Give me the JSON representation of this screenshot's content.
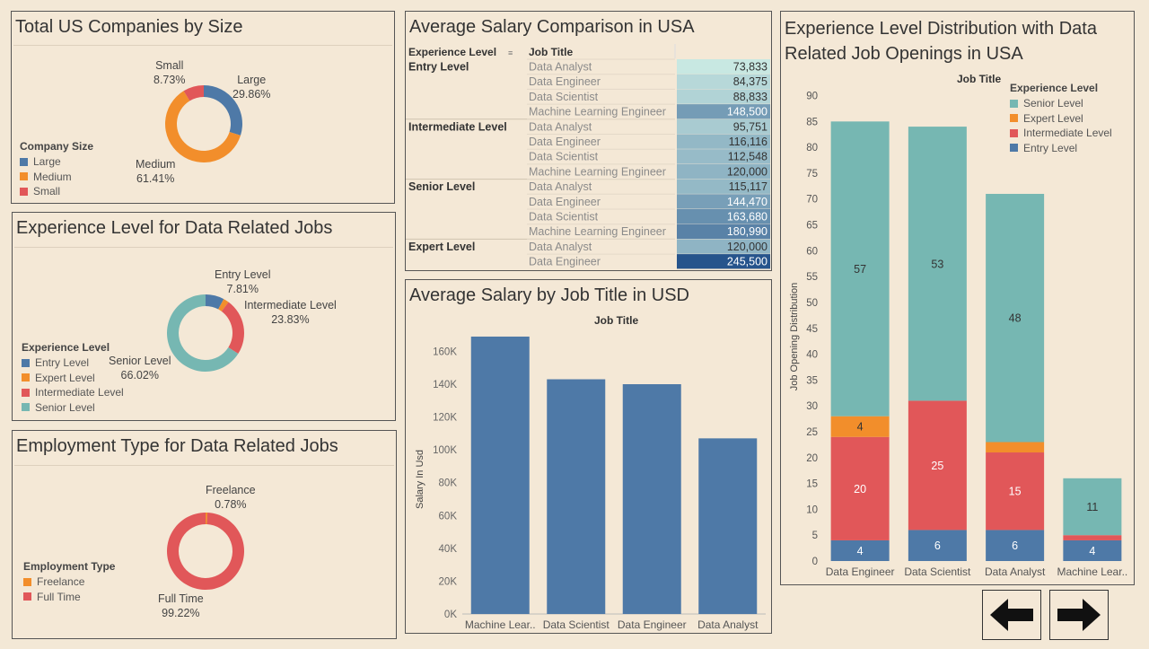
{
  "panels": {
    "company_size": {
      "title": "Total US Companies by Size",
      "legend_title": "Company Size",
      "legend": [
        {
          "label": "Large",
          "color": "#4e79a7"
        },
        {
          "label": "Medium",
          "color": "#f28e2b"
        },
        {
          "label": "Small",
          "color": "#e15759"
        }
      ],
      "slices": [
        {
          "name": "Large",
          "pct_label": "29.86%",
          "color": "#4e79a7"
        },
        {
          "name": "Medium",
          "pct_label": "61.41%",
          "color": "#f28e2b"
        },
        {
          "name": "Small",
          "pct_label": "8.73%",
          "color": "#e15759"
        }
      ]
    },
    "experience_level": {
      "title": "Experience Level for Data Related Jobs",
      "legend_title": "Experience Level",
      "legend": [
        {
          "label": "Entry Level",
          "color": "#4e79a7"
        },
        {
          "label": "Expert Level",
          "color": "#f28e2b"
        },
        {
          "label": "Intermediate Level",
          "color": "#e15759"
        },
        {
          "label": "Senior Level",
          "color": "#76b7b2"
        }
      ],
      "slices": [
        {
          "name": "Entry Level",
          "pct_label": "7.81%",
          "color": "#4e79a7"
        },
        {
          "name": "Expert Level",
          "pct_label": "",
          "color": "#f28e2b"
        },
        {
          "name": "Intermediate Level",
          "pct_label": "23.83%",
          "color": "#e15759"
        },
        {
          "name": "Senior Level",
          "pct_label": "66.02%",
          "color": "#76b7b2"
        }
      ]
    },
    "employment_type": {
      "title": "Employment Type for Data Related Jobs",
      "legend_title": "Employment Type",
      "legend": [
        {
          "label": "Freelance",
          "color": "#f28e2b"
        },
        {
          "label": "Full Time",
          "color": "#e15759"
        }
      ],
      "slices": [
        {
          "name": "Freelance",
          "pct_label": "0.78%",
          "color": "#f28e2b"
        },
        {
          "name": "Full Time",
          "pct_label": "99.22%",
          "color": "#e15759"
        }
      ]
    },
    "salary_table": {
      "title": "Average Salary Comparison in USA",
      "col1_header": "Experience Level",
      "col2_header": "Job Title",
      "groups": [
        {
          "level": "Entry Level",
          "rows": [
            {
              "job": "Data Analyst",
              "value": "73,833"
            },
            {
              "job": "Data Engineer",
              "value": "84,375"
            },
            {
              "job": "Data Scientist",
              "value": "88,833"
            },
            {
              "job": "Machine Learning Engineer",
              "value": "148,500"
            }
          ]
        },
        {
          "level": "Intermediate Level",
          "rows": [
            {
              "job": "Data Analyst",
              "value": "95,751"
            },
            {
              "job": "Data Engineer",
              "value": "116,116"
            },
            {
              "job": "Data Scientist",
              "value": "112,548"
            },
            {
              "job": "Machine Learning Engineer",
              "value": "120,000"
            }
          ]
        },
        {
          "level": "Senior Level",
          "rows": [
            {
              "job": "Data Analyst",
              "value": "115,117"
            },
            {
              "job": "Data Engineer",
              "value": "144,470"
            },
            {
              "job": "Data Scientist",
              "value": "163,680"
            },
            {
              "job": "Machine Learning Engineer",
              "value": "180,990"
            }
          ]
        },
        {
          "level": "Expert Level",
          "rows": [
            {
              "job": "Data Analyst",
              "value": "120,000"
            },
            {
              "job": "Data Engineer",
              "value": "245,500"
            }
          ]
        }
      ]
    },
    "salary_bar": {
      "title": "Average Salary by Job Title in USD",
      "header": "Job Title"
    },
    "stacked": {
      "title_line1": "Experience Level Distribution with Data",
      "title_line2": "Related Job Openings in USA",
      "header": "Job Title",
      "legend_title": "Experience Level",
      "legend": [
        {
          "label": "Senior Level",
          "color": "#76b7b2"
        },
        {
          "label": "Expert Level",
          "color": "#f28e2b"
        },
        {
          "label": "Intermediate Level",
          "color": "#e15759"
        },
        {
          "label": "Entry Level",
          "color": "#4e79a7"
        }
      ]
    }
  },
  "nav": {
    "back_icon": "arrow-left-icon",
    "forward_icon": "arrow-right-icon"
  },
  "chart_data": [
    {
      "type": "pie",
      "title": "Total US Companies by Size",
      "categories": [
        "Large",
        "Medium",
        "Small"
      ],
      "values": [
        29.86,
        61.41,
        8.73
      ]
    },
    {
      "type": "pie",
      "title": "Experience Level for Data Related Jobs",
      "categories": [
        "Entry Level",
        "Expert Level",
        "Intermediate Level",
        "Senior Level"
      ],
      "values": [
        7.81,
        2.34,
        23.83,
        66.02
      ]
    },
    {
      "type": "pie",
      "title": "Employment Type for Data Related Jobs",
      "categories": [
        "Freelance",
        "Full Time"
      ],
      "values": [
        0.78,
        99.22
      ]
    },
    {
      "type": "table",
      "title": "Average Salary Comparison in USA",
      "color_range": [
        73833,
        245500
      ]
    },
    {
      "type": "bar",
      "title": "Average Salary by Job Title in USD",
      "xlabel": "Job Title",
      "ylabel": "Salary In Usd",
      "categories": [
        "Machine Lear..",
        "Data Scientist",
        "Data Engineer",
        "Data Analyst"
      ],
      "values": [
        169000,
        143000,
        140000,
        107000
      ],
      "ylim": [
        0,
        175000
      ],
      "yticks": [
        0,
        20000,
        40000,
        60000,
        80000,
        100000,
        120000,
        140000,
        160000
      ],
      "ytick_labels": [
        "0K",
        "20K",
        "40K",
        "60K",
        "80K",
        "100K",
        "120K",
        "140K",
        "160K"
      ],
      "color": "#4e79a7"
    },
    {
      "type": "bar",
      "stacked": true,
      "title": "Experience Level Distribution with Data Related Job Openings in USA",
      "xlabel": "Job Title",
      "ylabel": "Job Opening Distribution",
      "categories": [
        "Data Engineer",
        "Data Scientist",
        "Data Analyst",
        "Machine Lear.."
      ],
      "series": [
        {
          "name": "Entry Level",
          "color": "#4e79a7",
          "values": [
            4,
            6,
            6,
            4
          ],
          "labels": [
            "4",
            "6",
            "6",
            "4"
          ]
        },
        {
          "name": "Intermediate Level",
          "color": "#e15759",
          "values": [
            20,
            25,
            15,
            1
          ],
          "labels": [
            "20",
            "25",
            "15",
            ""
          ]
        },
        {
          "name": "Expert Level",
          "color": "#f28e2b",
          "values": [
            4,
            0,
            2,
            0
          ],
          "labels": [
            "4",
            "",
            "",
            ""
          ]
        },
        {
          "name": "Senior Level",
          "color": "#76b7b2",
          "values": [
            57,
            53,
            48,
            11
          ],
          "labels": [
            "57",
            "53",
            "48",
            "11"
          ]
        }
      ],
      "ylim": [
        0,
        92
      ],
      "yticks": [
        0,
        5,
        10,
        15,
        20,
        25,
        30,
        35,
        40,
        45,
        50,
        55,
        60,
        65,
        70,
        75,
        80,
        85,
        90
      ]
    }
  ]
}
